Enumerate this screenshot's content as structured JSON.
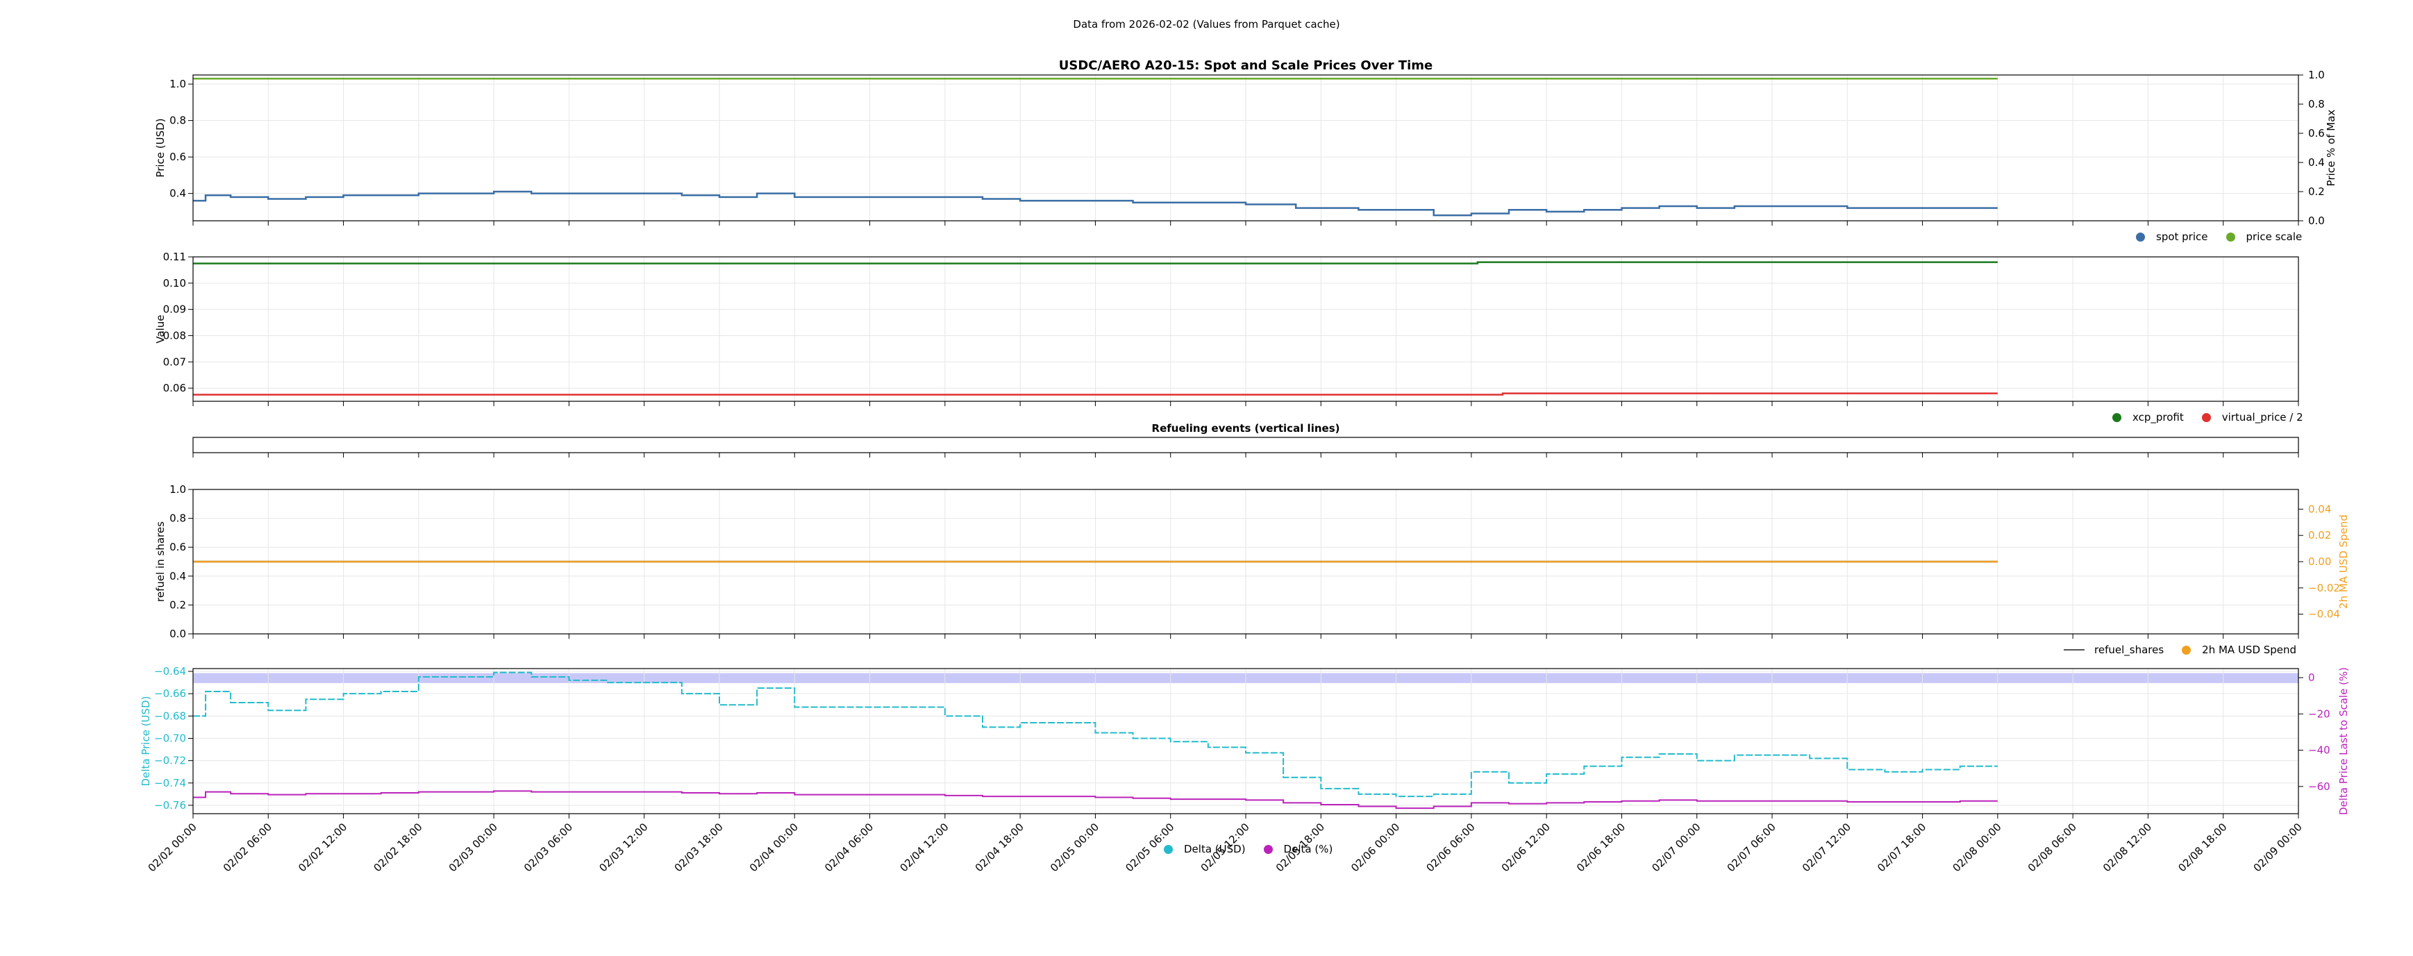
{
  "page": {
    "subtitle": "Data from 2026-02-02 (Values from Parquet cache)"
  },
  "x_ticks": [
    "02/02 00:00",
    "02/02 06:00",
    "02/02 12:00",
    "02/02 18:00",
    "02/03 00:00",
    "02/03 06:00",
    "02/03 12:00",
    "02/03 18:00",
    "02/04 00:00",
    "02/04 06:00",
    "02/04 12:00",
    "02/04 18:00",
    "02/05 00:00",
    "02/05 06:00",
    "02/05 12:00",
    "02/05 18:00",
    "02/06 00:00",
    "02/06 06:00",
    "02/06 12:00",
    "02/06 18:00",
    "02/07 00:00",
    "02/07 06:00",
    "02/07 12:00",
    "02/07 18:00",
    "02/08 00:00",
    "02/08 06:00",
    "02/08 12:00",
    "02/08 18:00",
    "02/09 00:00"
  ],
  "chart_data": [
    {
      "type": "line",
      "title": "USDC/AERO A20-15: Spot and Scale Prices Over Time",
      "xlabel": "",
      "ylabel": "Price (USD)",
      "y2label": "Price % of Max",
      "xlim": [
        0,
        168
      ],
      "ylim": [
        0.25,
        1.05
      ],
      "yticks": [
        0.4,
        0.6,
        0.8,
        1.0
      ],
      "y2lim": [
        0.0,
        1.0
      ],
      "y2ticks": [
        0.0,
        0.2,
        0.4,
        0.6,
        0.8,
        1.0
      ],
      "grid": true,
      "legend": "below-right",
      "x_hours": [
        0,
        1,
        3,
        6,
        9,
        12,
        15,
        18,
        21,
        24,
        27,
        30,
        33,
        36,
        39,
        42,
        45,
        48,
        51,
        54,
        57,
        60,
        63,
        66,
        69,
        72,
        75,
        78,
        81,
        84,
        87,
        88,
        90,
        93,
        96,
        99,
        102,
        105,
        108,
        111,
        114,
        117,
        120,
        123,
        126,
        129,
        132,
        135,
        138,
        141,
        144
      ],
      "series": [
        {
          "name": "spot price",
          "color": "#3a6ea5",
          "axis": "y",
          "values": [
            0.36,
            0.39,
            0.38,
            0.37,
            0.38,
            0.39,
            0.39,
            0.4,
            0.4,
            0.41,
            0.4,
            0.4,
            0.4,
            0.4,
            0.39,
            0.38,
            0.4,
            0.38,
            0.38,
            0.38,
            0.38,
            0.38,
            0.37,
            0.36,
            0.36,
            0.36,
            0.35,
            0.35,
            0.35,
            0.34,
            0.34,
            0.32,
            0.32,
            0.31,
            0.31,
            0.28,
            0.29,
            0.31,
            0.3,
            0.31,
            0.32,
            0.33,
            0.32,
            0.33,
            0.33,
            0.33,
            0.32,
            0.32,
            0.32,
            0.32,
            0.32
          ]
        },
        {
          "name": "price scale",
          "color": "#6aaa2a",
          "axis": "y",
          "values": [
            1.03,
            1.03,
            1.03,
            1.03,
            1.03,
            1.03,
            1.03,
            1.03,
            1.03,
            1.03,
            1.03,
            1.03,
            1.03,
            1.03,
            1.03,
            1.03,
            1.03,
            1.03,
            1.03,
            1.03,
            1.03,
            1.03,
            1.03,
            1.03,
            1.03,
            1.03,
            1.03,
            1.03,
            1.03,
            1.03,
            1.03,
            1.03,
            1.03,
            1.03,
            1.03,
            1.03,
            1.03,
            1.03,
            1.03,
            1.03,
            1.03,
            1.03,
            1.03,
            1.03,
            1.03,
            1.03,
            1.03,
            1.03,
            1.03,
            1.03,
            1.03
          ]
        }
      ]
    },
    {
      "type": "line",
      "title": "",
      "ylabel": "Value",
      "xlim": [
        0,
        168
      ],
      "ylim": [
        0.055,
        0.11
      ],
      "yticks": [
        0.06,
        0.07,
        0.08,
        0.09,
        0.1,
        0.11
      ],
      "grid": true,
      "legend": "below-right",
      "series": [
        {
          "name": "xcp_profit",
          "color": "#1a7a1a",
          "x": [
            0,
            102,
            102.5,
            144
          ],
          "values": [
            0.1075,
            0.1075,
            0.108,
            0.108
          ]
        },
        {
          "name": "virtual_price / 2",
          "color": "#e03030",
          "x": [
            0,
            104,
            104.5,
            144
          ],
          "values": [
            0.0575,
            0.0575,
            0.058,
            0.058
          ]
        }
      ]
    },
    {
      "type": "line",
      "title": "Refueling events (vertical lines)",
      "xlim": [
        0,
        168
      ],
      "series": []
    },
    {
      "type": "line",
      "title": "",
      "ylabel": "refuel in shares",
      "y2label": "2h MA USD Spend",
      "xlim": [
        0,
        168
      ],
      "ylim": [
        0.0,
        1.0
      ],
      "yticks": [
        0.0,
        0.2,
        0.4,
        0.6,
        0.8,
        1.0
      ],
      "y2lim": [
        -0.055,
        0.055
      ],
      "y2ticks": [
        -0.04,
        -0.02,
        0.0,
        0.02,
        0.04
      ],
      "grid": true,
      "legend": "below-right",
      "series": [
        {
          "name": "refuel_shares",
          "color": "#555555",
          "style": "line",
          "axis": "y",
          "x": [
            0,
            144
          ],
          "values": [
            0.5,
            0.5
          ]
        },
        {
          "name": "2h MA USD Spend",
          "color": "#f0a020",
          "axis": "y2",
          "x": [
            0,
            144
          ],
          "values": [
            0.0,
            0.0
          ]
        }
      ]
    },
    {
      "type": "line",
      "title": "",
      "ylabel": "Delta Price (USD)",
      "y2label": "Delta Price Last to Scale (%)",
      "xlim": [
        0,
        168
      ],
      "ylim": [
        -0.7675,
        -0.6375
      ],
      "yticks": [
        -0.76,
        -0.74,
        -0.72,
        -0.7,
        -0.68,
        -0.66,
        -0.64
      ],
      "y2lim": [
        -75,
        5
      ],
      "y2ticks": [
        -60,
        -40,
        -20,
        0
      ],
      "grid": true,
      "legend": "below-center",
      "band": {
        "color": "#c8c8f8",
        "y2_from": -3,
        "y2_to": 2.5
      },
      "x_hours": [
        0,
        1,
        3,
        6,
        9,
        12,
        15,
        18,
        21,
        24,
        27,
        30,
        33,
        36,
        39,
        42,
        45,
        48,
        51,
        54,
        57,
        60,
        63,
        66,
        69,
        72,
        75,
        78,
        81,
        84,
        87,
        88,
        90,
        93,
        96,
        99,
        102,
        105,
        108,
        111,
        114,
        117,
        120,
        123,
        126,
        129,
        132,
        135,
        138,
        141,
        144
      ],
      "series": [
        {
          "name": "Delta (USD)",
          "color": "#22bbcc",
          "axis": "y",
          "values": [
            -0.68,
            -0.658,
            -0.668,
            -0.675,
            -0.665,
            -0.66,
            -0.658,
            -0.645,
            -0.645,
            -0.641,
            -0.645,
            -0.648,
            -0.65,
            -0.65,
            -0.66,
            -0.67,
            -0.655,
            -0.672,
            -0.672,
            -0.672,
            -0.672,
            -0.68,
            -0.69,
            -0.686,
            -0.686,
            -0.695,
            -0.7,
            -0.703,
            -0.708,
            -0.713,
            -0.735,
            -0.735,
            -0.745,
            -0.75,
            -0.752,
            -0.75,
            -0.73,
            -0.74,
            -0.732,
            -0.725,
            -0.717,
            -0.714,
            -0.72,
            -0.715,
            -0.715,
            -0.718,
            -0.728,
            -0.73,
            -0.728,
            -0.725,
            -0.725
          ]
        },
        {
          "name": "Delta (%)",
          "color": "#bb22bb",
          "axis": "y2",
          "values": [
            -66,
            -63,
            -64,
            -64.5,
            -64,
            -64,
            -63.5,
            -63,
            -63,
            -62.5,
            -63,
            -63,
            -63,
            -63,
            -63.5,
            -64,
            -63.5,
            -64.5,
            -64.5,
            -64.5,
            -64.5,
            -65,
            -65.5,
            -65.5,
            -65.5,
            -66,
            -66.5,
            -67,
            -67,
            -67.5,
            -69,
            -69,
            -70,
            -71,
            -72,
            -71,
            -69,
            -69.5,
            -69,
            -68.5,
            -68,
            -67.5,
            -68,
            -68,
            -68,
            -68,
            -68.5,
            -68.5,
            -68.5,
            -68,
            -68
          ]
        }
      ]
    }
  ]
}
